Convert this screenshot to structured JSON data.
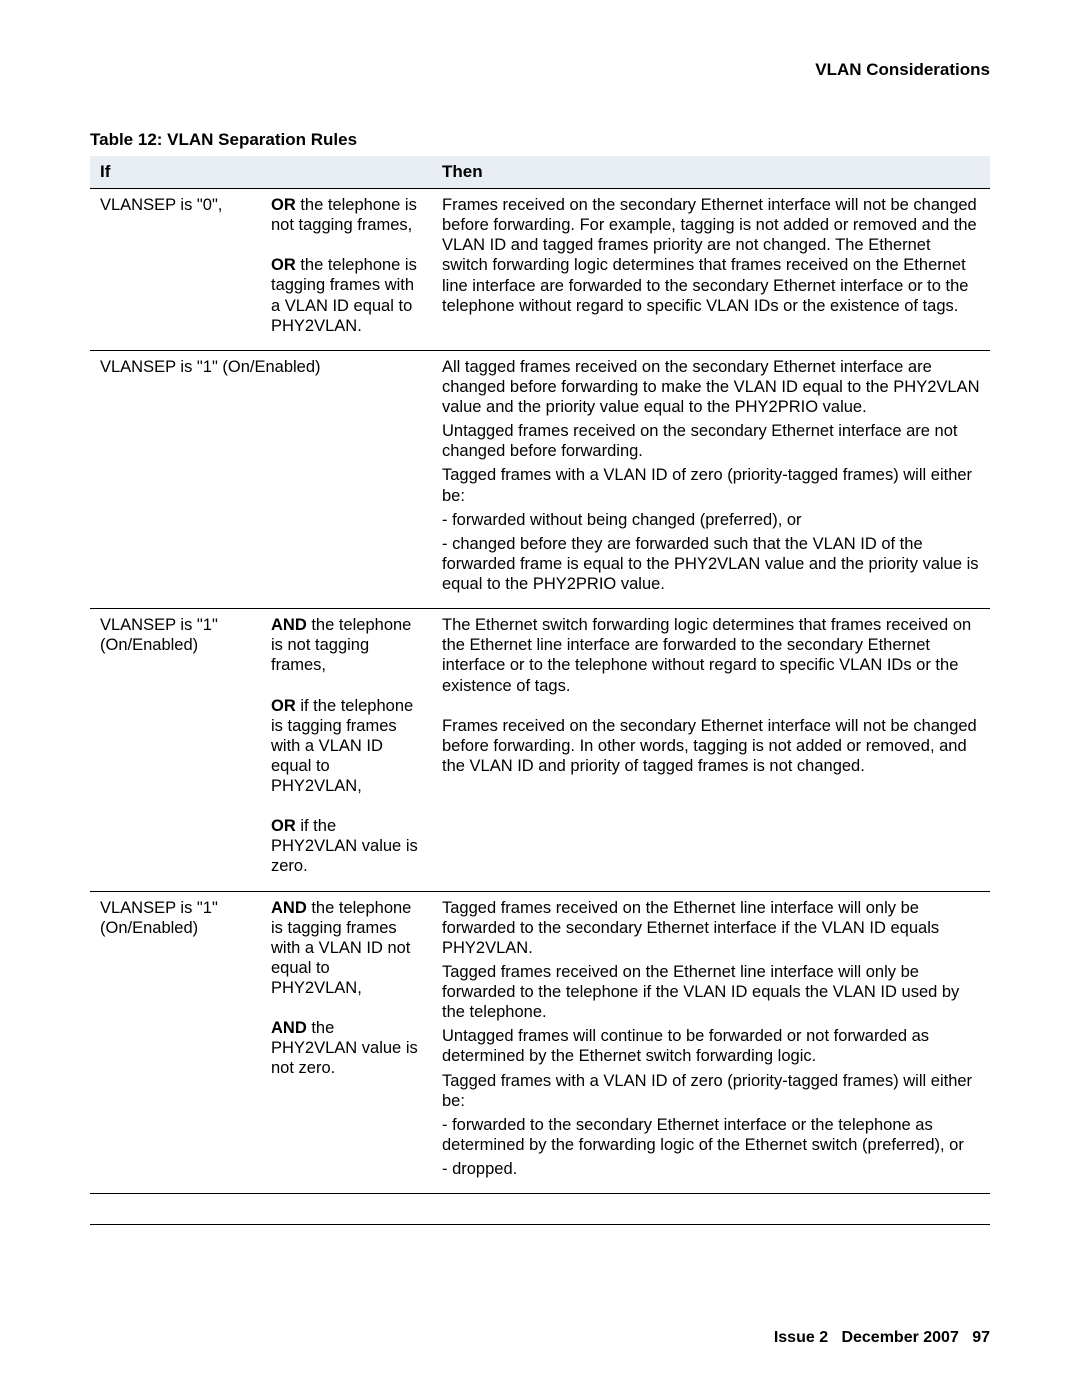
{
  "header": {
    "section_title": "VLAN Considerations"
  },
  "table": {
    "title": "Table 12: VLAN Separation Rules",
    "columns": {
      "if": "If",
      "then": "Then"
    },
    "rows": [
      {
        "if_main": "VLANSEP is \"0\",",
        "cond_runs": [
          {
            "bold": "OR ",
            "text": "the telephone is not tagging frames,"
          },
          {
            "gap": true
          },
          {
            "bold": "OR ",
            "text": "the telephone is tagging frames with a VLAN ID equal to PHY2VLAN."
          }
        ],
        "then_paras": [
          "Frames received on the secondary Ethernet interface will not be changed before forwarding. For example, tagging is not added or removed and the VLAN ID and tagged frames priority are not changed. The Ethernet switch forwarding logic determines that frames received on the Ethernet line interface are forwarded to the secondary Ethernet interface or to the telephone without regard to specific VLAN IDs or the existence of tags."
        ]
      },
      {
        "if_span": "VLANSEP is \"1\" (On/Enabled)",
        "then_paras": [
          "All tagged frames received on the secondary Ethernet interface are changed before forwarding to make the VLAN ID equal to the PHY2VLAN value and the priority value equal to the PHY2PRIO value.",
          "Untagged frames received on the secondary Ethernet interface are not changed before forwarding.",
          "Tagged frames with a VLAN ID of zero (priority-tagged frames) will either be:",
          "- forwarded without being changed (preferred), or",
          "- changed before they are forwarded such that the VLAN ID of the forwarded frame is equal to the PHY2VLAN value and the priority value is equal to the PHY2PRIO value."
        ]
      },
      {
        "if_main": "VLANSEP is \"1\" (On/Enabled)",
        "cond_runs": [
          {
            "bold": "AND ",
            "text": "the telephone is not tagging frames,"
          },
          {
            "gap": true
          },
          {
            "bold": "OR ",
            "text": "if the telephone is tagging frames with a VLAN ID equal to PHY2VLAN,"
          },
          {
            "gap": true
          },
          {
            "bold": "OR ",
            "text": "if the PHY2VLAN value is zero."
          }
        ],
        "then_paras": [
          "The Ethernet switch forwarding logic determines that frames received on the Ethernet line interface are forwarded to the secondary Ethernet interface or to the telephone without regard to specific VLAN IDs or the existence of tags.",
          "",
          "Frames received on the secondary Ethernet interface will not be changed before forwarding. In other words, tagging is not added or removed, and the VLAN ID and priority of tagged frames is not changed."
        ]
      },
      {
        "if_main": "VLANSEP is \"1\" (On/Enabled)",
        "cond_runs": [
          {
            "bold": "AND ",
            "text": "the telephone is tagging frames with a VLAN ID not equal to PHY2VLAN,"
          },
          {
            "gap": true
          },
          {
            "bold": "AND ",
            "text": "the PHY2VLAN value is not zero."
          }
        ],
        "then_paras": [
          "Tagged frames received on the Ethernet line interface will only be forwarded to the secondary Ethernet interface if the VLAN ID equals PHY2VLAN.",
          "Tagged frames received on the Ethernet line interface will only be forwarded to the telephone if the VLAN ID equals the VLAN ID used by the telephone.",
          "Untagged frames will continue to be forwarded or not forwarded as determined by the Ethernet switch forwarding logic.",
          "Tagged frames with a VLAN ID of zero (priority-tagged frames) will either be:",
          "- forwarded to the secondary Ethernet interface or the telephone as determined by the forwarding logic of the Ethernet switch (preferred), or",
          "- dropped."
        ]
      }
    ]
  },
  "footer": {
    "issue": "Issue 2",
    "date": "December 2007",
    "page": "97"
  }
}
